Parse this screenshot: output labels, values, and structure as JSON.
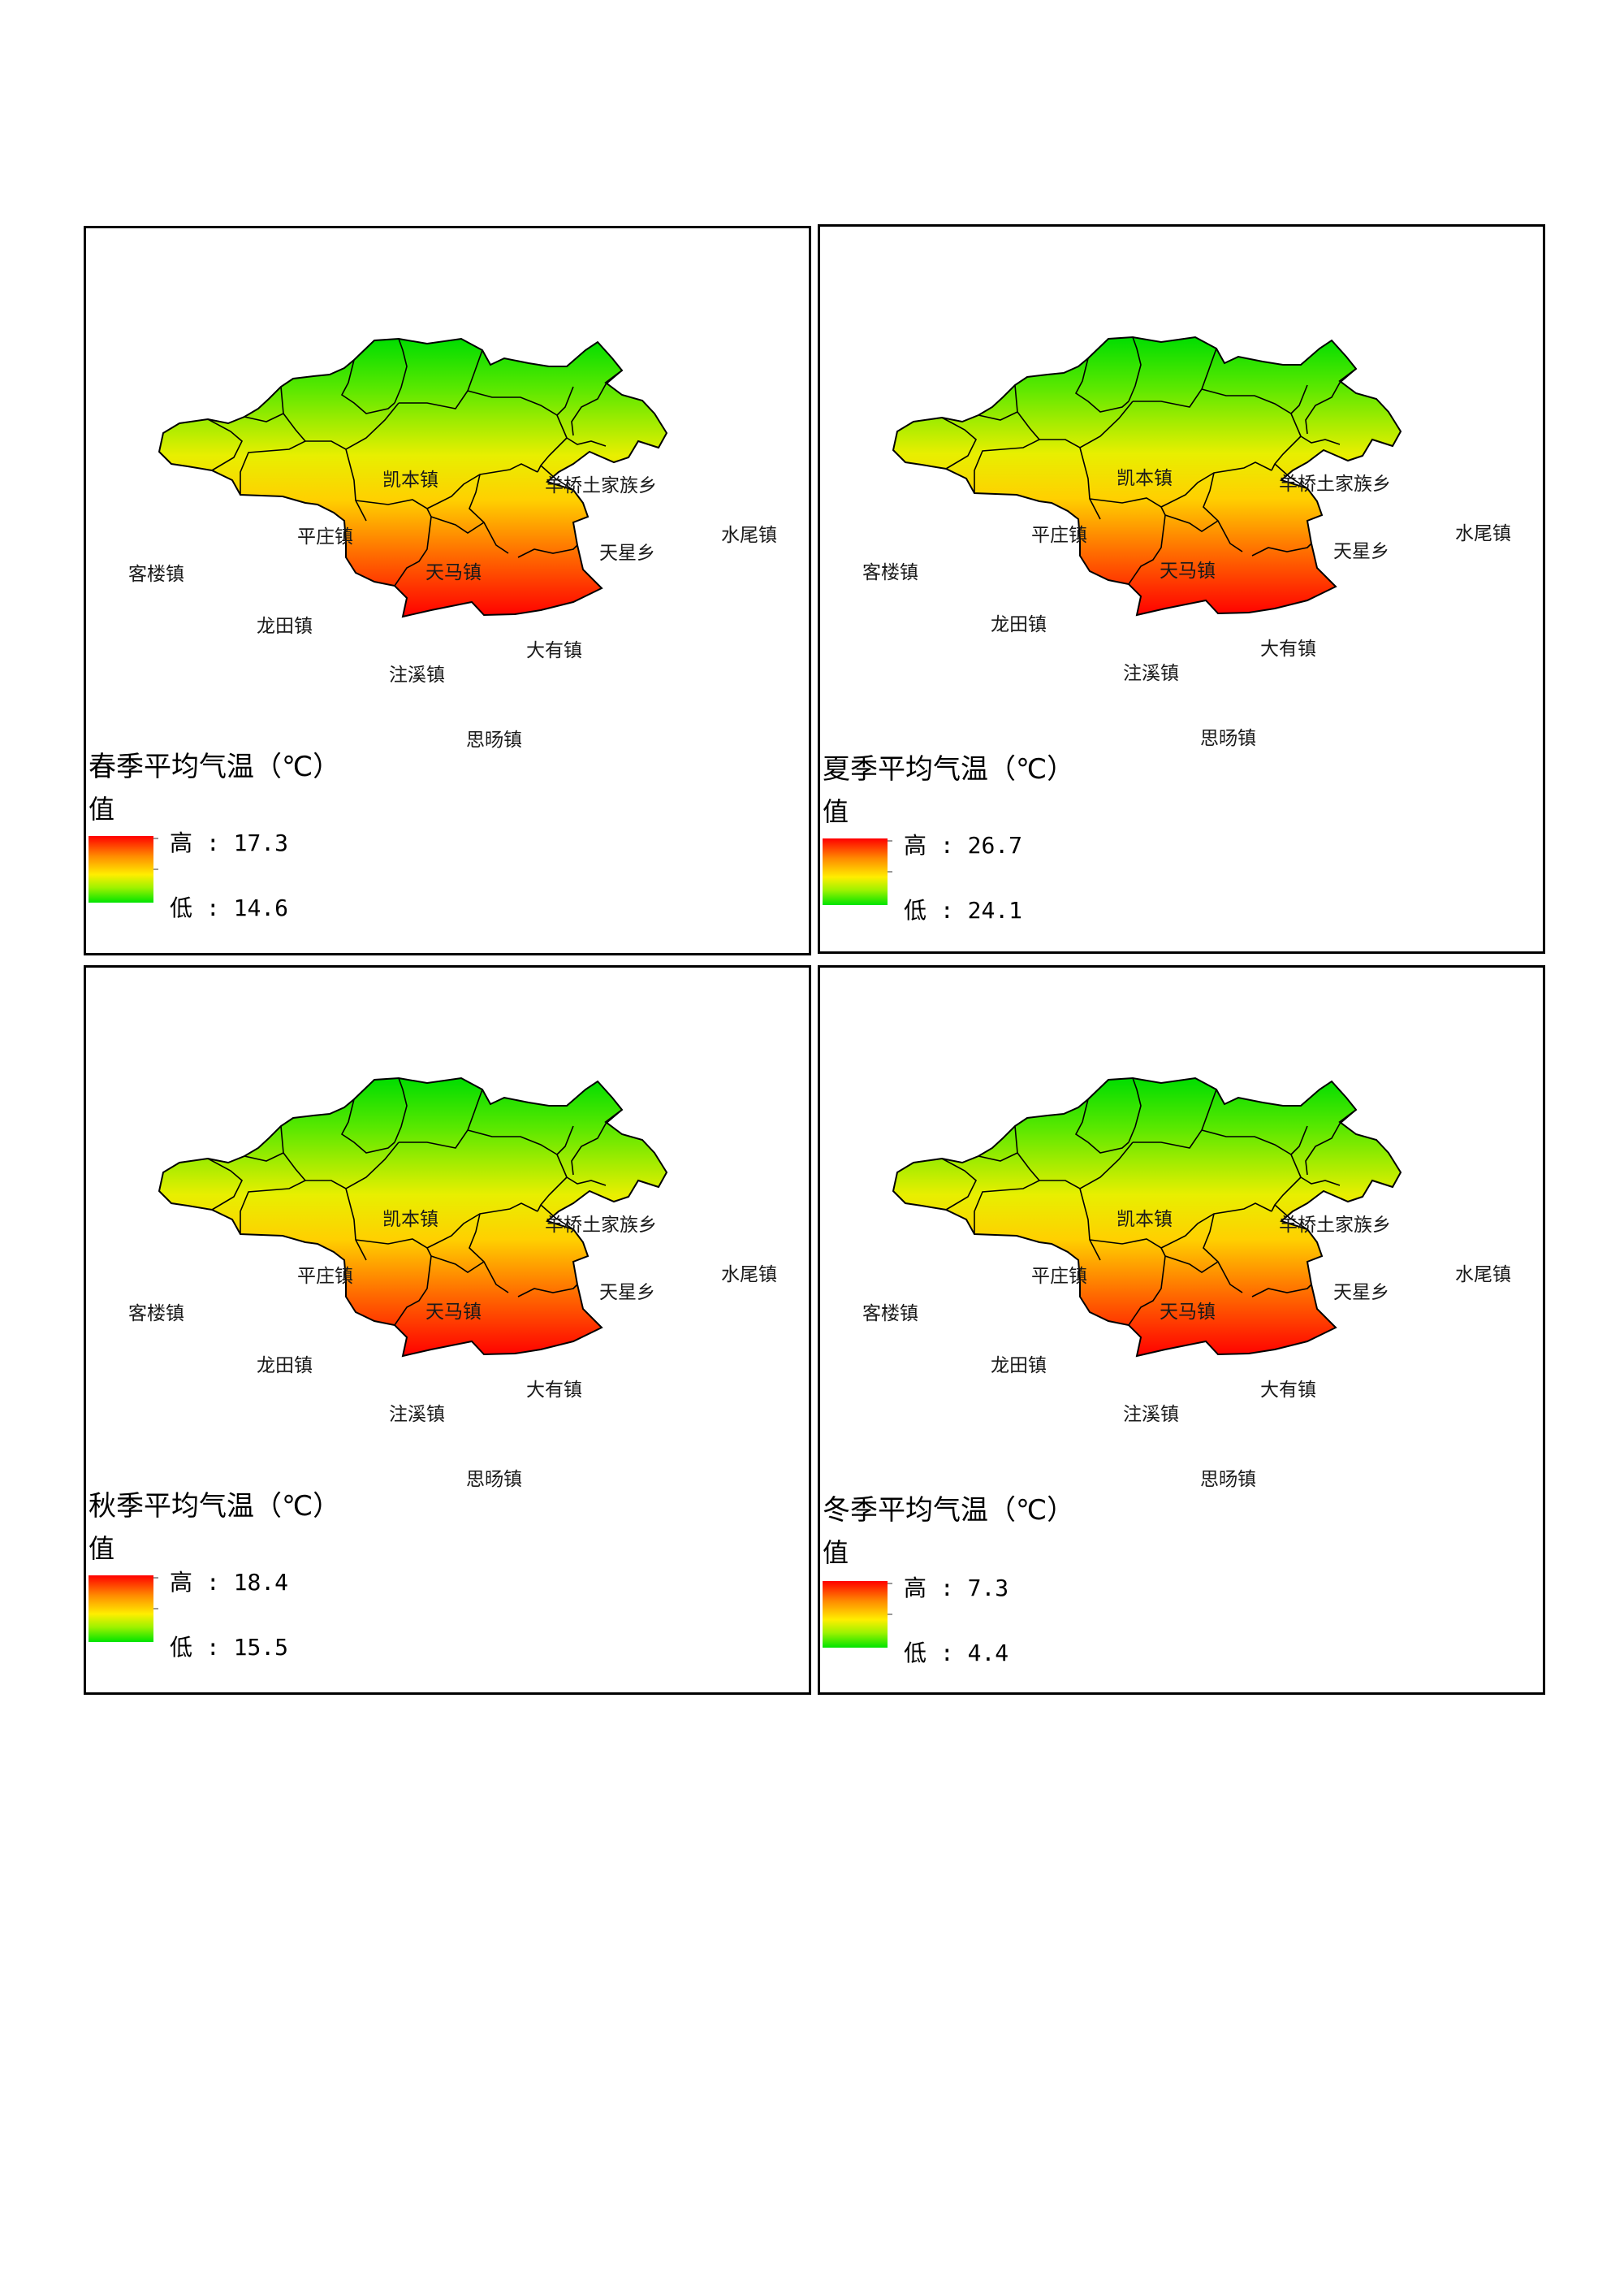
{
  "panels": [
    {
      "title": "春季平均气温（℃）",
      "value_label": "值",
      "high_label": "高",
      "high_value": "17.3",
      "low_label": "低",
      "low_value": "14.6"
    },
    {
      "title": "夏季平均气温（℃）",
      "value_label": "值",
      "high_label": "高",
      "high_value": "26.7",
      "low_label": "低",
      "low_value": "24.1"
    },
    {
      "title": "秋季平均气温（℃）",
      "value_label": "值",
      "high_label": "高",
      "high_value": "18.4",
      "low_label": "低",
      "low_value": "15.5"
    },
    {
      "title": "冬季平均气温（℃）",
      "value_label": "值",
      "high_label": "高",
      "high_value": "7.3",
      "low_label": "低",
      "low_value": "4.4"
    }
  ],
  "towns": {
    "kaiben": "凯本镇",
    "yangqiao": "羊桥土家族乡",
    "pingzhuang": "平庄镇",
    "shuiwei": "水尾镇",
    "kelou": "客楼镇",
    "tianxing": "天星乡",
    "tianma": "天马镇",
    "longtian": "龙田镇",
    "dayou": "大有镇",
    "zhuxi": "注溪镇",
    "siyang": "思旸镇"
  },
  "colors": {
    "high": "#ff0000",
    "mid": "#ffee00",
    "low": "#00e400",
    "border": "#000000"
  },
  "separator": " : "
}
